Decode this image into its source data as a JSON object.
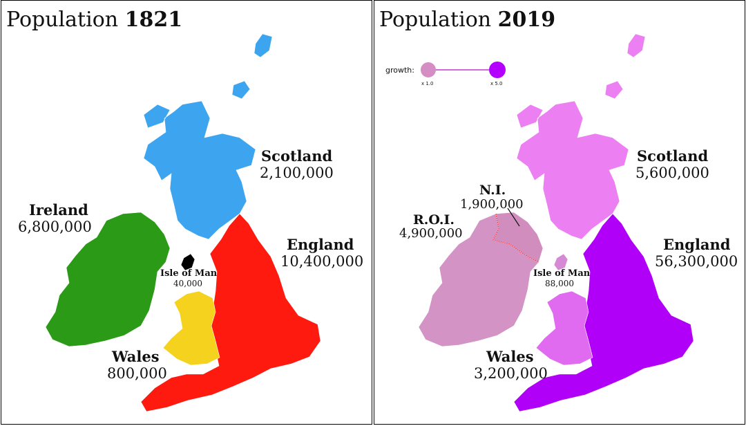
{
  "panels": [
    {
      "title_prefix": "Population",
      "title_year": "1821",
      "regions": [
        {
          "key": "scotland",
          "name": "Scotland",
          "value": "2,100,000",
          "color": "#3da5ef"
        },
        {
          "key": "ireland",
          "name": "Ireland",
          "value": "6,800,000",
          "color": "#2a9a17"
        },
        {
          "key": "england",
          "name": "England",
          "value": "10,400,000",
          "color": "#ff1a10"
        },
        {
          "key": "wales",
          "name": "Wales",
          "value": "800,000",
          "color": "#f5d21e"
        },
        {
          "key": "iom",
          "name": "Isle of Man",
          "value": "40,000",
          "color": "#000000"
        }
      ]
    },
    {
      "title_prefix": "Population",
      "title_year": "2019",
      "legend": {
        "label": "growth:",
        "min_label": "x 1.0",
        "max_label": "x 5.0",
        "min_color": "#d48ec3",
        "max_color": "#b300ff"
      },
      "regions": [
        {
          "key": "scotland",
          "name": "Scotland",
          "value": "5,600,000",
          "color": "#ec80f2"
        },
        {
          "key": "ni",
          "name": "N.I.",
          "value": "1,900,000",
          "color": "#d28dbf"
        },
        {
          "key": "roi",
          "name": "R.O.I.",
          "value": "4,900,000",
          "color": "#d393c5"
        },
        {
          "key": "england",
          "name": "England",
          "value": "56,300,000",
          "color": "#b000f8"
        },
        {
          "key": "wales",
          "name": "Wales",
          "value": "3,200,000",
          "color": "#e06af0"
        },
        {
          "key": "iom",
          "name": "Isle of Man",
          "value": "88,000",
          "color": "#d68ad6"
        }
      ]
    }
  ]
}
